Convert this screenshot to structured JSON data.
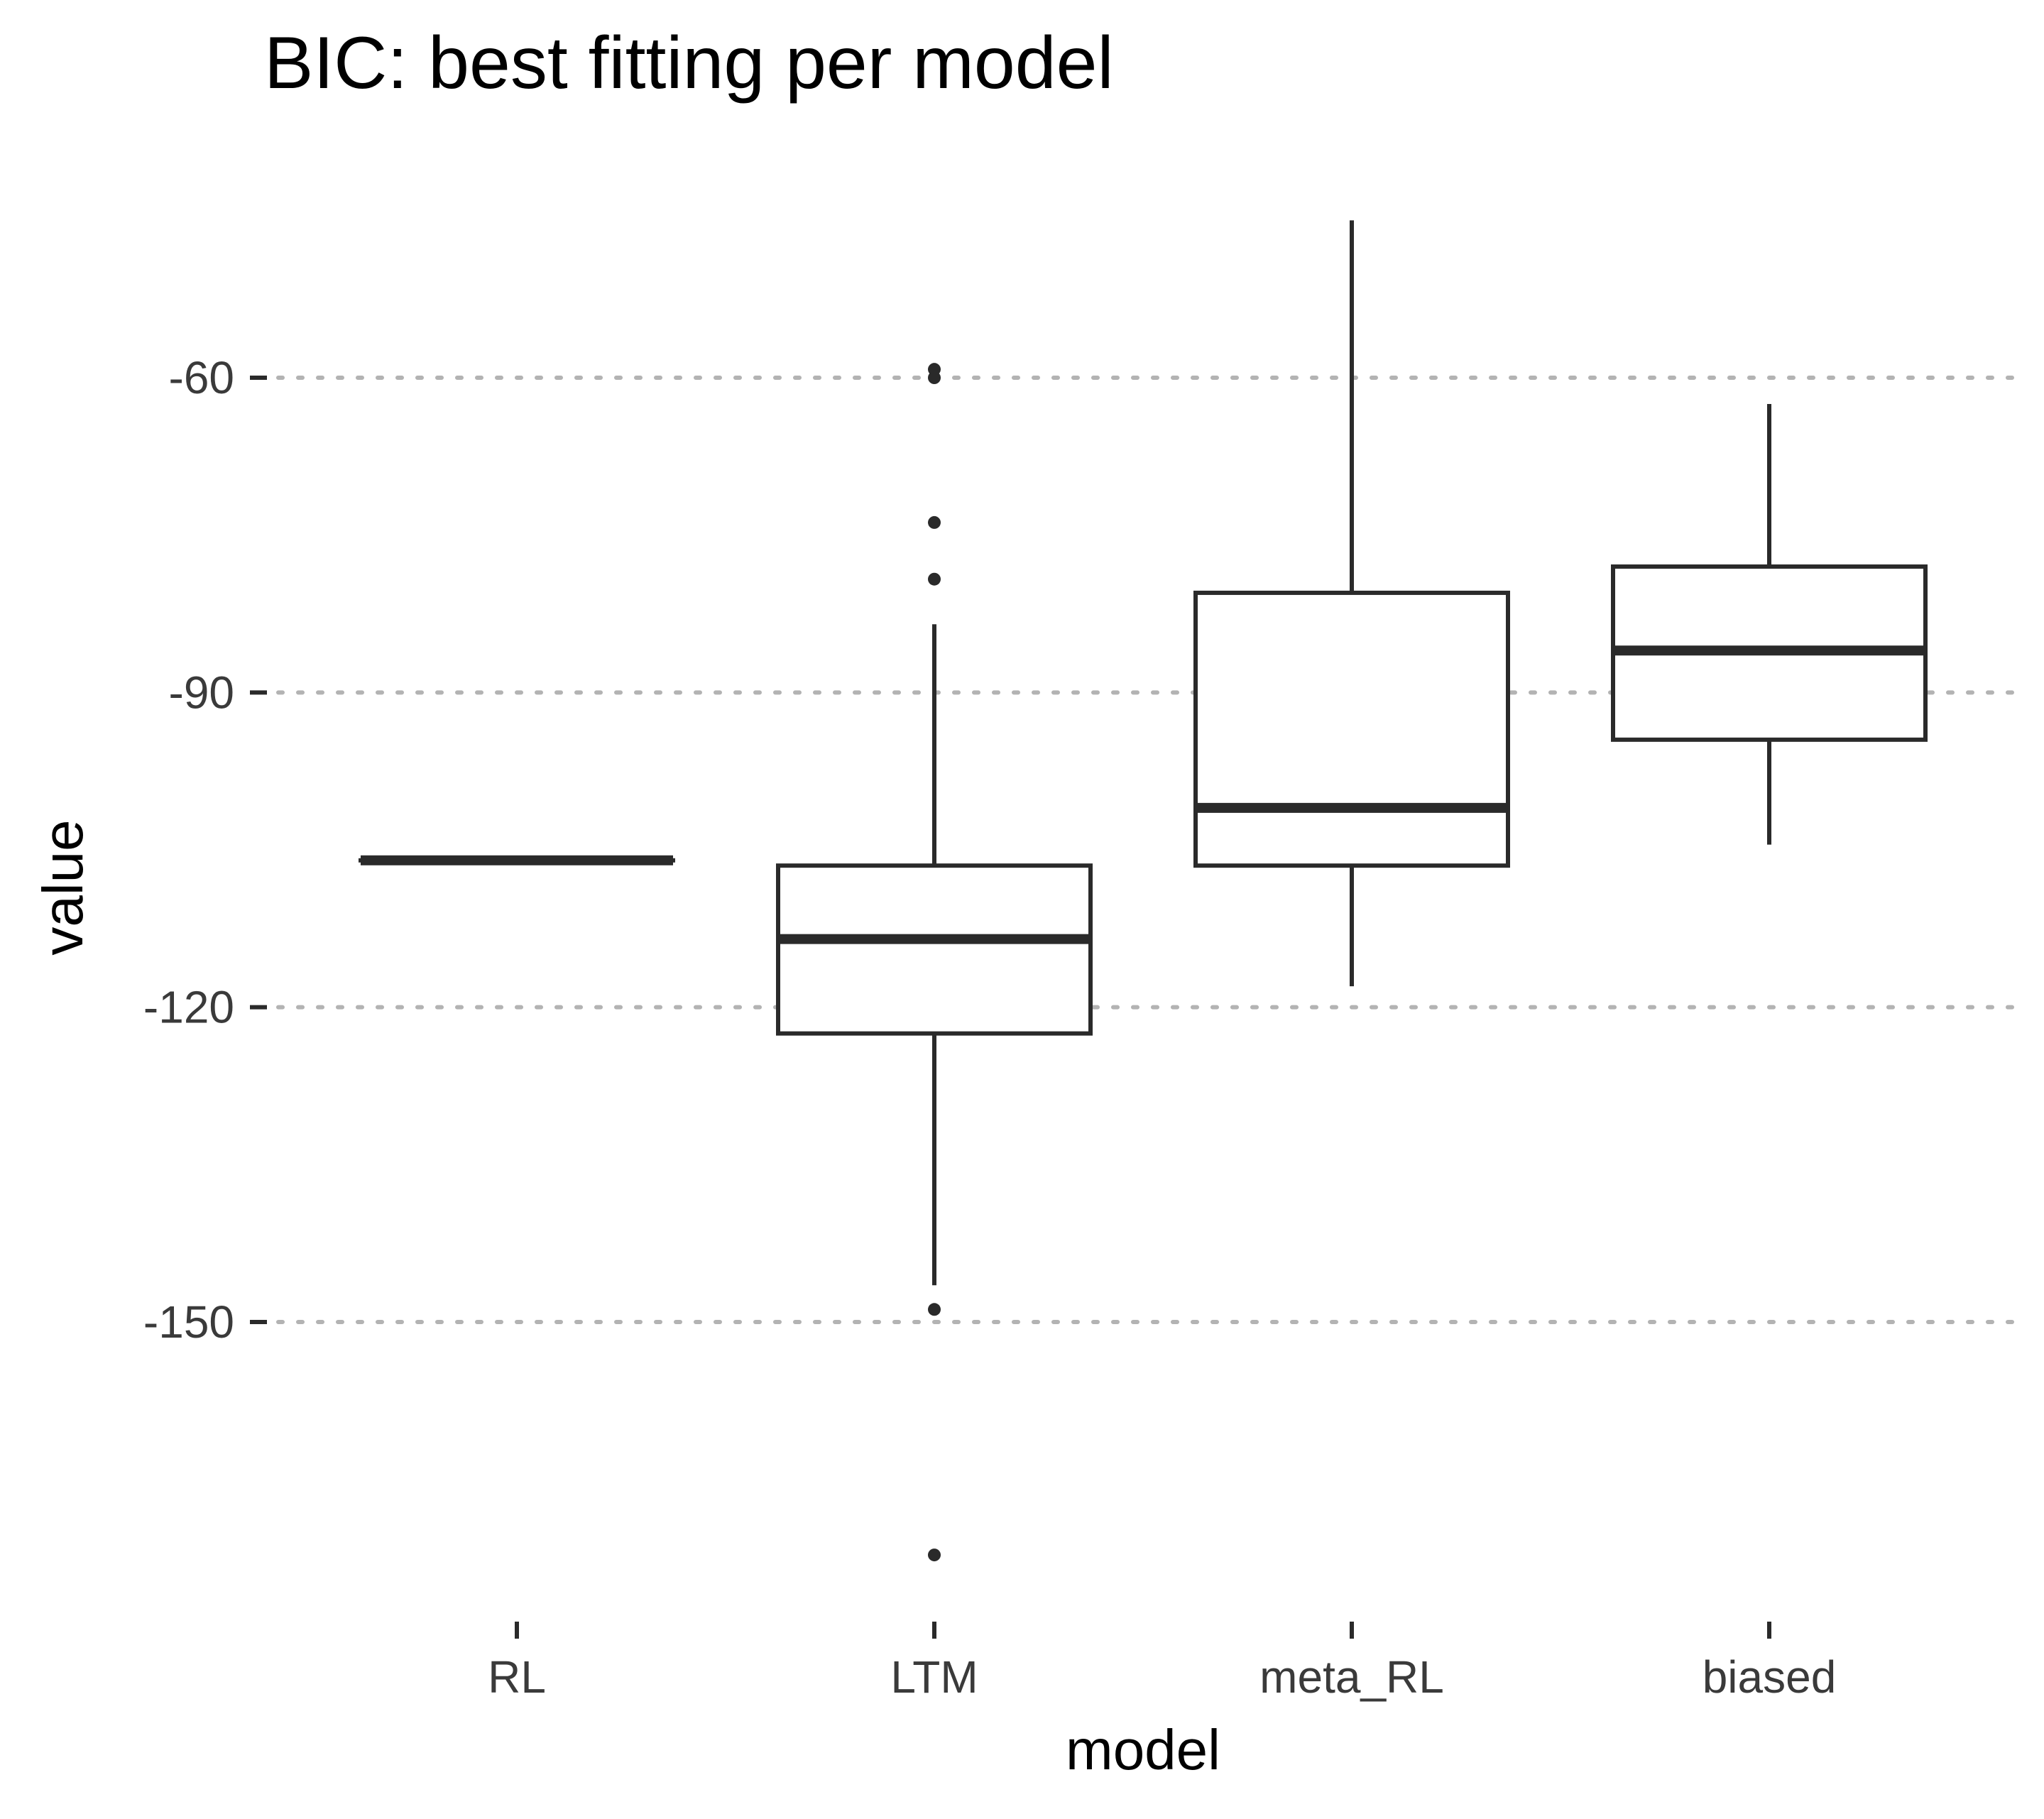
{
  "chart_data": {
    "type": "boxplot",
    "title": "BIC: best fitting per model",
    "xlabel": "model",
    "ylabel": "value",
    "ylim": [
      -177,
      -45
    ],
    "yticks": [
      -60,
      -90,
      -120,
      -150
    ],
    "ytick_labels": [
      "-60",
      "-90",
      "-120",
      "-150"
    ],
    "grid": "horizontal-major-dotted",
    "categories": [
      "RL",
      "LTM",
      "meta_RL",
      "biased"
    ],
    "boxes": [
      {
        "category": "RL",
        "whisker_low": -106,
        "q1": -106,
        "median": -106,
        "q3": -106,
        "whisker_high": -106,
        "outliers": []
      },
      {
        "category": "LTM",
        "whisker_low": -146.5,
        "q1": -122.5,
        "median": -113.5,
        "q3": -106.5,
        "whisker_high": -83.5,
        "outliers": [
          -59.2,
          -60.0,
          -73.8,
          -79.2,
          -148.8,
          -172.2
        ]
      },
      {
        "category": "meta_RL",
        "whisker_low": -118,
        "q1": -106.5,
        "median": -101,
        "q3": -80.5,
        "whisker_high": -45,
        "outliers": []
      },
      {
        "category": "biased",
        "whisker_low": -104.5,
        "q1": -94.5,
        "median": -86,
        "q3": -78,
        "whisker_high": -62.5,
        "outliers": []
      }
    ]
  }
}
